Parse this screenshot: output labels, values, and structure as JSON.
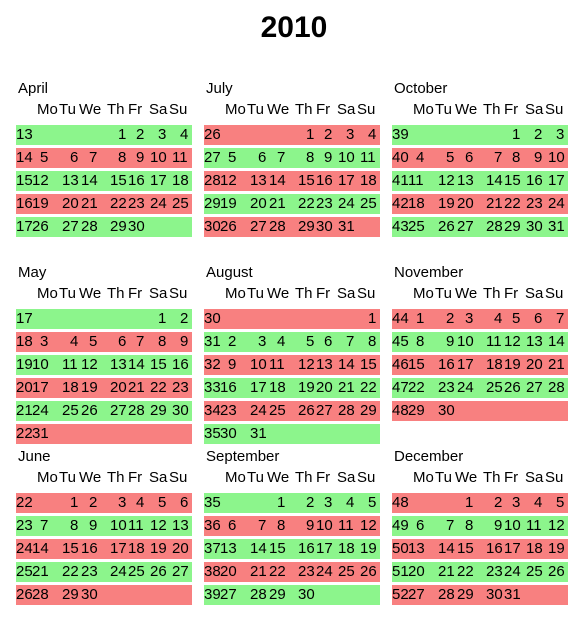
{
  "title": "2010",
  "weekday_labels": [
    "Mo",
    "Tu",
    "We",
    "Th",
    "Fr",
    "Sa",
    "Su"
  ],
  "colors": {
    "even_week": "#8cf58c",
    "odd_week": "#f88080"
  },
  "months": [
    {
      "name": "April",
      "weeks": [
        {
          "wk": "13",
          "days": [
            "",
            "",
            "",
            "1",
            "2",
            "3",
            "4"
          ]
        },
        {
          "wk": "14",
          "days": [
            "5",
            "6",
            "7",
            "8",
            "9",
            "10",
            "11"
          ]
        },
        {
          "wk": "15",
          "days": [
            "12",
            "13",
            "14",
            "15",
            "16",
            "17",
            "18"
          ]
        },
        {
          "wk": "16",
          "days": [
            "19",
            "20",
            "21",
            "22",
            "23",
            "24",
            "25"
          ]
        },
        {
          "wk": "17",
          "days": [
            "26",
            "27",
            "28",
            "29",
            "30",
            "",
            ""
          ]
        }
      ]
    },
    {
      "name": "July",
      "weeks": [
        {
          "wk": "26",
          "days": [
            "",
            "",
            "",
            "1",
            "2",
            "3",
            "4"
          ]
        },
        {
          "wk": "27",
          "days": [
            "5",
            "6",
            "7",
            "8",
            "9",
            "10",
            "11"
          ]
        },
        {
          "wk": "28",
          "days": [
            "12",
            "13",
            "14",
            "15",
            "16",
            "17",
            "18"
          ]
        },
        {
          "wk": "29",
          "days": [
            "19",
            "20",
            "21",
            "22",
            "23",
            "24",
            "25"
          ]
        },
        {
          "wk": "30",
          "days": [
            "26",
            "27",
            "28",
            "29",
            "30",
            "31",
            ""
          ]
        }
      ]
    },
    {
      "name": "October",
      "weeks": [
        {
          "wk": "39",
          "days": [
            "",
            "",
            "",
            "",
            "1",
            "2",
            "3"
          ]
        },
        {
          "wk": "40",
          "days": [
            "4",
            "5",
            "6",
            "7",
            "8",
            "9",
            "10"
          ]
        },
        {
          "wk": "41",
          "days": [
            "11",
            "12",
            "13",
            "14",
            "15",
            "16",
            "17"
          ]
        },
        {
          "wk": "42",
          "days": [
            "18",
            "19",
            "20",
            "21",
            "22",
            "23",
            "24"
          ]
        },
        {
          "wk": "43",
          "days": [
            "25",
            "26",
            "27",
            "28",
            "29",
            "30",
            "31"
          ]
        }
      ]
    },
    {
      "name": "May",
      "weeks": [
        {
          "wk": "17",
          "days": [
            "",
            "",
            "",
            "",
            "",
            "1",
            "2"
          ]
        },
        {
          "wk": "18",
          "days": [
            "3",
            "4",
            "5",
            "6",
            "7",
            "8",
            "9"
          ]
        },
        {
          "wk": "19",
          "days": [
            "10",
            "11",
            "12",
            "13",
            "14",
            "15",
            "16"
          ]
        },
        {
          "wk": "20",
          "days": [
            "17",
            "18",
            "19",
            "20",
            "21",
            "22",
            "23"
          ]
        },
        {
          "wk": "21",
          "days": [
            "24",
            "25",
            "26",
            "27",
            "28",
            "29",
            "30"
          ]
        },
        {
          "wk": "22",
          "days": [
            "31",
            "",
            "",
            "",
            "",
            "",
            ""
          ]
        }
      ]
    },
    {
      "name": "August",
      "weeks": [
        {
          "wk": "30",
          "days": [
            "",
            "",
            "",
            "",
            "",
            "",
            "1"
          ]
        },
        {
          "wk": "31",
          "days": [
            "2",
            "3",
            "4",
            "5",
            "6",
            "7",
            "8"
          ]
        },
        {
          "wk": "32",
          "days": [
            "9",
            "10",
            "11",
            "12",
            "13",
            "14",
            "15"
          ]
        },
        {
          "wk": "33",
          "days": [
            "16",
            "17",
            "18",
            "19",
            "20",
            "21",
            "22"
          ]
        },
        {
          "wk": "34",
          "days": [
            "23",
            "24",
            "25",
            "26",
            "27",
            "28",
            "29"
          ]
        },
        {
          "wk": "35",
          "days": [
            "30",
            "31",
            "",
            "",
            "",
            "",
            ""
          ]
        }
      ]
    },
    {
      "name": "November",
      "weeks": [
        {
          "wk": "44",
          "days": [
            "1",
            "2",
            "3",
            "4",
            "5",
            "6",
            "7"
          ]
        },
        {
          "wk": "45",
          "days": [
            "8",
            "9",
            "10",
            "11",
            "12",
            "13",
            "14"
          ]
        },
        {
          "wk": "46",
          "days": [
            "15",
            "16",
            "17",
            "18",
            "19",
            "20",
            "21"
          ]
        },
        {
          "wk": "47",
          "days": [
            "22",
            "23",
            "24",
            "25",
            "26",
            "27",
            "28"
          ]
        },
        {
          "wk": "48",
          "days": [
            "29",
            "30",
            "",
            "",
            "",
            "",
            ""
          ]
        }
      ]
    },
    {
      "name": "June",
      "weeks": [
        {
          "wk": "22",
          "days": [
            "",
            "1",
            "2",
            "3",
            "4",
            "5",
            "6"
          ]
        },
        {
          "wk": "23",
          "days": [
            "7",
            "8",
            "9",
            "10",
            "11",
            "12",
            "13"
          ]
        },
        {
          "wk": "24",
          "days": [
            "14",
            "15",
            "16",
            "17",
            "18",
            "19",
            "20"
          ]
        },
        {
          "wk": "25",
          "days": [
            "21",
            "22",
            "23",
            "24",
            "25",
            "26",
            "27"
          ]
        },
        {
          "wk": "26",
          "days": [
            "28",
            "29",
            "30",
            "",
            "",
            "",
            ""
          ]
        }
      ]
    },
    {
      "name": "September",
      "weeks": [
        {
          "wk": "35",
          "days": [
            "",
            "",
            "1",
            "2",
            "3",
            "4",
            "5"
          ]
        },
        {
          "wk": "36",
          "days": [
            "6",
            "7",
            "8",
            "9",
            "10",
            "11",
            "12"
          ]
        },
        {
          "wk": "37",
          "days": [
            "13",
            "14",
            "15",
            "16",
            "17",
            "18",
            "19"
          ]
        },
        {
          "wk": "38",
          "days": [
            "20",
            "21",
            "22",
            "23",
            "24",
            "25",
            "26"
          ]
        },
        {
          "wk": "39",
          "days": [
            "27",
            "28",
            "29",
            "30",
            "",
            "",
            ""
          ]
        }
      ]
    },
    {
      "name": "December",
      "weeks": [
        {
          "wk": "48",
          "days": [
            "",
            "",
            "1",
            "2",
            "3",
            "4",
            "5"
          ]
        },
        {
          "wk": "49",
          "days": [
            "6",
            "7",
            "8",
            "9",
            "10",
            "11",
            "12"
          ]
        },
        {
          "wk": "50",
          "days": [
            "13",
            "14",
            "15",
            "16",
            "17",
            "18",
            "19"
          ]
        },
        {
          "wk": "51",
          "days": [
            "20",
            "21",
            "22",
            "23",
            "24",
            "25",
            "26"
          ]
        },
        {
          "wk": "52",
          "days": [
            "27",
            "28",
            "29",
            "30",
            "31",
            "",
            ""
          ]
        }
      ]
    }
  ]
}
